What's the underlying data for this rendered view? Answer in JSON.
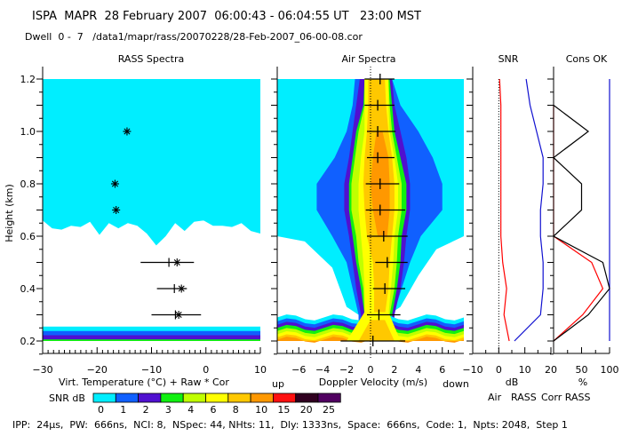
{
  "header": {
    "line1": "ISPA  MAPR  28 February 2007  06:00:43 - 06:04:55 UT   23:00 MST",
    "line2": "Dwell  0 -  7   /data1/mapr/rass/20070228/28-Feb-2007_06-00-08.cor"
  },
  "footer": {
    "params": "IPP:  24μs,  PW:  666ns,  NCI: 8,  NSpec: 44, NHts: 11,  Dly: 1333ns,  Space:  666ns,  Code: 1,  Npts: 2048,  Step 1"
  },
  "colorbar": {
    "label": "SNR dB",
    "ticks": [
      "0",
      "1",
      "2",
      "3",
      "4",
      "6",
      "8",
      "10",
      "15",
      "20",
      "25"
    ],
    "colors": [
      "#00eeff",
      "#1060ff",
      "#5010d0",
      "#10f010",
      "#c0ff00",
      "#ffff00",
      "#ffc800",
      "#ff9800",
      "#ff1010",
      "#300020",
      "#500060"
    ]
  },
  "chart_data": [
    {
      "type": "scatter",
      "title": "RASS Spectra",
      "xlabel": "Virt. Temperature (°C)   + Raw   * Cor",
      "ylabel": "Height (km)",
      "xlim": [
        -30,
        10
      ],
      "ylim": [
        0.15,
        1.25
      ],
      "xticks": [
        "-30",
        "-20",
        "-10",
        "0",
        "10"
      ],
      "yticks": [
        "0.2",
        "0.4",
        "0.6",
        "0.8",
        "1.0",
        "1.2"
      ],
      "series": [
        {
          "name": "Cor",
          "marker": "*",
          "points": [
            [
              -14.5,
              1.0
            ],
            [
              -16.7,
              0.8
            ],
            [
              -16.5,
              0.7
            ],
            [
              -5.3,
              0.5
            ],
            [
              -4.5,
              0.4
            ],
            [
              -5.0,
              0.3
            ]
          ]
        },
        {
          "name": "Raw",
          "marker": "+",
          "points": [
            [
              -6.8,
              0.5
            ],
            [
              -5.8,
              0.4
            ],
            [
              -5.6,
              0.3
            ]
          ],
          "xerr": [
            [
              -12,
              -2.2
            ],
            [
              -9,
              -3.5
            ],
            [
              -10,
              -0.9
            ]
          ]
        }
      ]
    },
    {
      "type": "heatmap",
      "title": "Air Spectra",
      "xlabel": "Doppler Velocity (m/s)",
      "xlabel_left": "up",
      "xlabel_right": "down",
      "xlim": [
        -7.8,
        7.8
      ],
      "ylim": [
        0.15,
        1.25
      ],
      "xticks": [
        "-6",
        "-4",
        "-2",
        "0",
        "2",
        "4",
        "6"
      ],
      "peaks": [
        {
          "height": 1.2,
          "v": 0.8,
          "width": [
            -0.5,
            2.0
          ]
        },
        {
          "height": 1.1,
          "v": 0.6,
          "width": [
            -0.5,
            2.0
          ]
        },
        {
          "height": 1.0,
          "v": 0.6,
          "width": [
            -0.3,
            2.1
          ]
        },
        {
          "height": 0.9,
          "v": 0.6,
          "width": [
            -0.3,
            2.0
          ]
        },
        {
          "height": 0.8,
          "v": 0.8,
          "width": [
            -0.4,
            2.4
          ]
        },
        {
          "height": 0.7,
          "v": 0.8,
          "width": [
            -0.4,
            2.9
          ]
        },
        {
          "height": 0.6,
          "v": 1.1,
          "width": [
            -0.3,
            3.1
          ]
        },
        {
          "height": 0.5,
          "v": 1.4,
          "width": [
            0.4,
            3.1
          ]
        },
        {
          "height": 0.4,
          "v": 1.2,
          "width": [
            0.2,
            2.9
          ]
        },
        {
          "height": 0.3,
          "v": 0.7,
          "width": [
            -0.3,
            2.5
          ]
        },
        {
          "height": 0.2,
          "v": 0.2,
          "width": [
            -2.5,
            2.9
          ]
        }
      ]
    },
    {
      "type": "line",
      "title": "SNR",
      "xlabel": "dB",
      "xlim": [
        -10,
        20
      ],
      "ylim": [
        0.15,
        1.25
      ],
      "xticks": [
        "-10",
        "0",
        "10",
        "20"
      ],
      "series": [
        {
          "name": "Air",
          "color": "#1010d0",
          "heights": [
            1.2,
            1.1,
            1.0,
            0.9,
            0.8,
            0.7,
            0.6,
            0.5,
            0.4,
            0.3,
            0.2
          ],
          "values": [
            10.5,
            12,
            14.5,
            17,
            17,
            16,
            16,
            17,
            17,
            16,
            6
          ]
        },
        {
          "name": "RASS",
          "color": "#ff0000",
          "heights": [
            1.2,
            1.1,
            1.0,
            0.9,
            0.8,
            0.7,
            0.6,
            0.5,
            0.4,
            0.3,
            0.2
          ],
          "values": [
            0.3,
            0.8,
            0.8,
            0.8,
            0.8,
            0.8,
            0.8,
            1.5,
            3,
            2,
            4
          ]
        }
      ]
    },
    {
      "type": "line",
      "title": "Cons OK",
      "xlabel": "%",
      "xlim": [
        0,
        100
      ],
      "ylim": [
        0.15,
        1.25
      ],
      "xticks": [
        "50",
        "100"
      ],
      "series": [
        {
          "name": "Air",
          "color": "#1010d0",
          "heights": [
            1.2,
            0.2
          ],
          "values": [
            100,
            100
          ]
        },
        {
          "name": "RASS",
          "color": "#ff0000",
          "heights": [
            1.1,
            1.0,
            0.9,
            0.8,
            0.7,
            0.6,
            0.5,
            0.4,
            0.3,
            0.2
          ],
          "values": [
            0,
            0,
            0,
            0,
            0,
            0,
            68,
            88,
            52,
            0
          ]
        },
        {
          "name": "Corr RASS",
          "color": "#000000",
          "heights": [
            1.1,
            1.0,
            0.9,
            0.8,
            0.7,
            0.6,
            0.5,
            0.4,
            0.3,
            0.2
          ],
          "values": [
            0,
            62,
            0,
            50,
            50,
            0,
            88,
            100,
            62,
            0
          ]
        }
      ]
    }
  ],
  "legend": {
    "air": "Air",
    "rass": "RASS",
    "corr": "Corr RASS"
  }
}
